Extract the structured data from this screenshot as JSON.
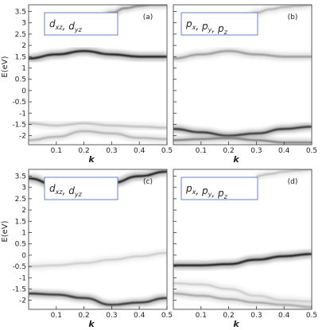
{
  "chart_data": [
    {
      "type": "heatmap",
      "panel_label": "(a)",
      "legend_text": "d_xz, d_yz",
      "legend": {
        "main1": "d",
        "sub1": "xz",
        "sep": ", ",
        "main2": "d",
        "sub2": "yz"
      },
      "ylabel": "E(eV)",
      "xlabel": "k",
      "xlim": [
        0,
        0.5
      ],
      "ylim": [
        -2.4,
        3.8
      ],
      "xticks": [
        "0.1",
        "0.2",
        "0.3",
        "0.4",
        "0.5"
      ],
      "yticks": [
        "3.5",
        "3",
        "2.5",
        "2",
        "1.5",
        "1",
        "0.5",
        "0",
        "-0.5",
        "-1",
        "-1.5",
        "-2"
      ],
      "bands": [
        {
          "x": [
            0,
            0.1,
            0.2,
            0.3,
            0.4,
            0.5
          ],
          "y": [
            1.42,
            1.6,
            1.75,
            1.6,
            1.5,
            1.5
          ],
          "intensity": 0.9
        },
        {
          "x": [
            0.25,
            0.3,
            0.35,
            0.4,
            0.45,
            0.5
          ],
          "y": [
            3.2,
            3.45,
            3.65,
            3.75,
            3.8,
            3.8
          ],
          "intensity": 0.45
        },
        {
          "x": [
            0,
            0.1,
            0.2,
            0.3,
            0.4,
            0.5
          ],
          "y": [
            -1.45,
            -1.55,
            -1.45,
            -1.55,
            -1.6,
            -1.65
          ],
          "intensity": 0.25
        },
        {
          "x": [
            0,
            0.1,
            0.2,
            0.3,
            0.4,
            0.5
          ],
          "y": [
            -2.2,
            -2.05,
            -1.8,
            -1.9,
            -2.1,
            -2.15
          ],
          "intensity": 0.3
        }
      ]
    },
    {
      "type": "heatmap",
      "panel_label": "(b)",
      "legend_text": "p_x, p_y, p_z",
      "legend": {
        "main1": "p",
        "sub1": "x",
        "sep": ", ",
        "main2": "p",
        "sub2": "y",
        "sep2": ", ",
        "main3": "p",
        "sub3": "z"
      },
      "ylabel": "",
      "xlabel": "k",
      "xlim": [
        0,
        0.5
      ],
      "ylim": [
        -2.4,
        3.8
      ],
      "xticks": [
        "0.1",
        "0.2",
        "0.3",
        "0.4",
        "0.5"
      ],
      "bands": [
        {
          "x": [
            0,
            0.1,
            0.2,
            0.3,
            0.4,
            0.5
          ],
          "y": [
            1.42,
            1.6,
            1.75,
            1.6,
            1.5,
            1.5
          ],
          "intensity": 0.4
        },
        {
          "x": [
            0,
            0.1,
            0.2,
            0.3,
            0.4,
            0.5
          ],
          "y": [
            -1.7,
            -1.85,
            -2.0,
            -1.9,
            -1.7,
            -1.6
          ],
          "intensity": 0.8
        },
        {
          "x": [
            0,
            0.1,
            0.2,
            0.3,
            0.4,
            0.5
          ],
          "y": [
            -2.2,
            -2.15,
            -2.1,
            -2.2,
            -2.3,
            -2.3
          ],
          "intensity": 0.5
        },
        {
          "x": [
            0.25,
            0.3,
            0.35,
            0.4,
            0.45,
            0.5
          ],
          "y": [
            3.2,
            3.45,
            3.6,
            3.7,
            3.75,
            3.8
          ],
          "intensity": 0.3
        }
      ]
    },
    {
      "type": "heatmap",
      "panel_label": "(c)",
      "legend_text": "d_xz, d_yz",
      "legend": {
        "main1": "d",
        "sub1": "xz",
        "sep": ", ",
        "main2": "d",
        "sub2": "yz"
      },
      "ylabel": "E(eV)",
      "xlabel": "k",
      "xlim": [
        0,
        0.5
      ],
      "ylim": [
        -2.4,
        3.8
      ],
      "xticks": [
        "0.1",
        "0.2",
        "0.3",
        "0.4",
        "0.5"
      ],
      "yticks": [
        "3.5",
        "3",
        "2.5",
        "2",
        "1.5",
        "1",
        "0.5",
        "0",
        "-0.5",
        "-1",
        "-1.5",
        "-2"
      ],
      "bands": [
        {
          "x": [
            0,
            0.1,
            0.2,
            0.3,
            0.4,
            0.5
          ],
          "y": [
            3.4,
            3.1,
            3.0,
            3.2,
            3.5,
            3.7
          ],
          "intensity": 0.9
        },
        {
          "x": [
            0,
            0.1,
            0.2,
            0.3,
            0.4,
            0.5
          ],
          "y": [
            -1.7,
            -1.75,
            -1.9,
            -2.2,
            -2.1,
            -1.9
          ],
          "intensity": 0.8
        },
        {
          "x": [
            0,
            0.1,
            0.2,
            0.3,
            0.4,
            0.5
          ],
          "y": [
            -0.5,
            -0.45,
            -0.35,
            -0.2,
            -0.05,
            0.1
          ],
          "intensity": 0.2
        }
      ]
    },
    {
      "type": "heatmap",
      "panel_label": "(d)",
      "legend_text": "p_x, p_y, p_z",
      "legend": {
        "main1": "p",
        "sub1": "x",
        "sep": ", ",
        "main2": "p",
        "sub2": "y",
        "sep2": ", ",
        "main3": "p",
        "sub3": "z"
      },
      "ylabel": "",
      "xlabel": "k",
      "xlim": [
        0,
        0.5
      ],
      "ylim": [
        -2.4,
        3.8
      ],
      "xticks": [
        "0.1",
        "0.2",
        "0.3",
        "0.4",
        "0.5"
      ],
      "bands": [
        {
          "x": [
            0,
            0.1,
            0.2,
            0.3,
            0.4,
            0.5
          ],
          "y": [
            -0.45,
            -0.45,
            -0.4,
            -0.2,
            -0.05,
            0.05
          ],
          "intensity": 0.9
        },
        {
          "x": [
            0,
            0.1,
            0.2,
            0.3,
            0.4,
            0.5
          ],
          "y": [
            -1.7,
            -1.8,
            -1.95,
            -2.1,
            -2.2,
            -2.3
          ],
          "intensity": 0.35
        },
        {
          "x": [
            0,
            0.1,
            0.2,
            0.3,
            0.4,
            0.5
          ],
          "y": [
            -1.25,
            -1.3,
            -1.5,
            -1.8,
            -2.0,
            -2.05
          ],
          "intensity": 0.2
        },
        {
          "x": [
            0.3,
            0.35,
            0.4,
            0.45,
            0.5
          ],
          "y": [
            3.5,
            3.6,
            3.7,
            3.75,
            3.8
          ],
          "intensity": 0.25
        }
      ]
    }
  ]
}
